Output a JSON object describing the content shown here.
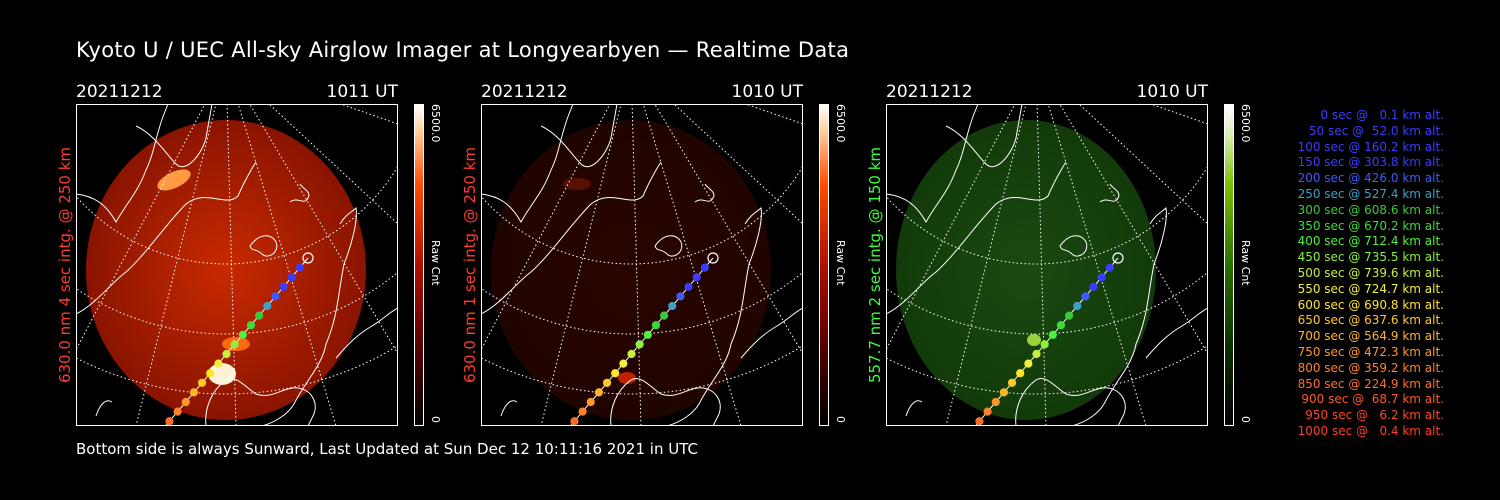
{
  "title": "Kyoto U / UEC All-sky Airglow Imager at Longyearbyen — Realtime Data",
  "panels": [
    {
      "date": "20211212",
      "time": "1011 UT",
      "ylabel": "630.0 nm 4 sec intg. @ 250 km",
      "label_color": "#ff3b2f",
      "colorbar_max": "6500.0",
      "colorbar_unit": "Raw Cnt",
      "colorbar_min": "0",
      "theme": "red-bright"
    },
    {
      "date": "20211212",
      "time": "1010 UT",
      "ylabel": "630.0 nm 1 sec intg. @ 250 km",
      "label_color": "#ff3b2f",
      "colorbar_max": "6500.0",
      "colorbar_unit": "Raw Cnt",
      "colorbar_min": "0",
      "theme": "red-dim"
    },
    {
      "date": "20211212",
      "time": "1010 UT",
      "ylabel": "557.7 nm 2 sec intg. @ 150 km",
      "label_color": "#3cff3c",
      "colorbar_max": "6500.0",
      "colorbar_unit": "Raw Cnt",
      "colorbar_min": "0",
      "theme": "green"
    }
  ],
  "footer": "Bottom side is always Sunward, Last Updated at Sun Dec 12 10:11:16 2021 in UTC",
  "legend": [
    {
      "text": "0 sec @   0.1 km alt.",
      "color": "#3c3cff"
    },
    {
      "text": "50 sec @  52.0 km alt.",
      "color": "#3c3cff"
    },
    {
      "text": "100 sec @ 160.2 km alt.",
      "color": "#3c3cff"
    },
    {
      "text": "150 sec @ 303.8 km alt.",
      "color": "#3c3cff"
    },
    {
      "text": "200 sec @ 426.0 km alt.",
      "color": "#3c5aff"
    },
    {
      "text": "250 sec @ 527.4 km alt.",
      "color": "#3ca0c8"
    },
    {
      "text": "300 sec @ 608.6 km alt.",
      "color": "#3cc83c"
    },
    {
      "text": "350 sec @ 670.2 km alt.",
      "color": "#3cdc3c"
    },
    {
      "text": "400 sec @ 712.4 km alt.",
      "color": "#50f03c"
    },
    {
      "text": "450 sec @ 735.5 km alt.",
      "color": "#8cf03c"
    },
    {
      "text": "500 sec @ 739.6 km alt.",
      "color": "#c8f03c"
    },
    {
      "text": "550 sec @ 724.7 km alt.",
      "color": "#f0f03c"
    },
    {
      "text": "600 sec @ 690.8 km alt.",
      "color": "#ffe628"
    },
    {
      "text": "650 sec @ 637.6 km alt.",
      "color": "#ffc828"
    },
    {
      "text": "700 sec @ 564.9 km alt.",
      "color": "#ffb428"
    },
    {
      "text": "750 sec @ 472.3 km alt.",
      "color": "#ff9628"
    },
    {
      "text": "800 sec @ 359.2 km alt.",
      "color": "#ff8228"
    },
    {
      "text": "850 sec @ 224.9 km alt.",
      "color": "#ff6e28"
    },
    {
      "text": "900 sec @  68.7 km alt.",
      "color": "#ff5a28"
    },
    {
      "text": "950 sec @   6.2 km alt.",
      "color": "#ff4628"
    },
    {
      "text": "1000 sec @   0.4 km alt.",
      "color": "#ff3c28"
    }
  ]
}
